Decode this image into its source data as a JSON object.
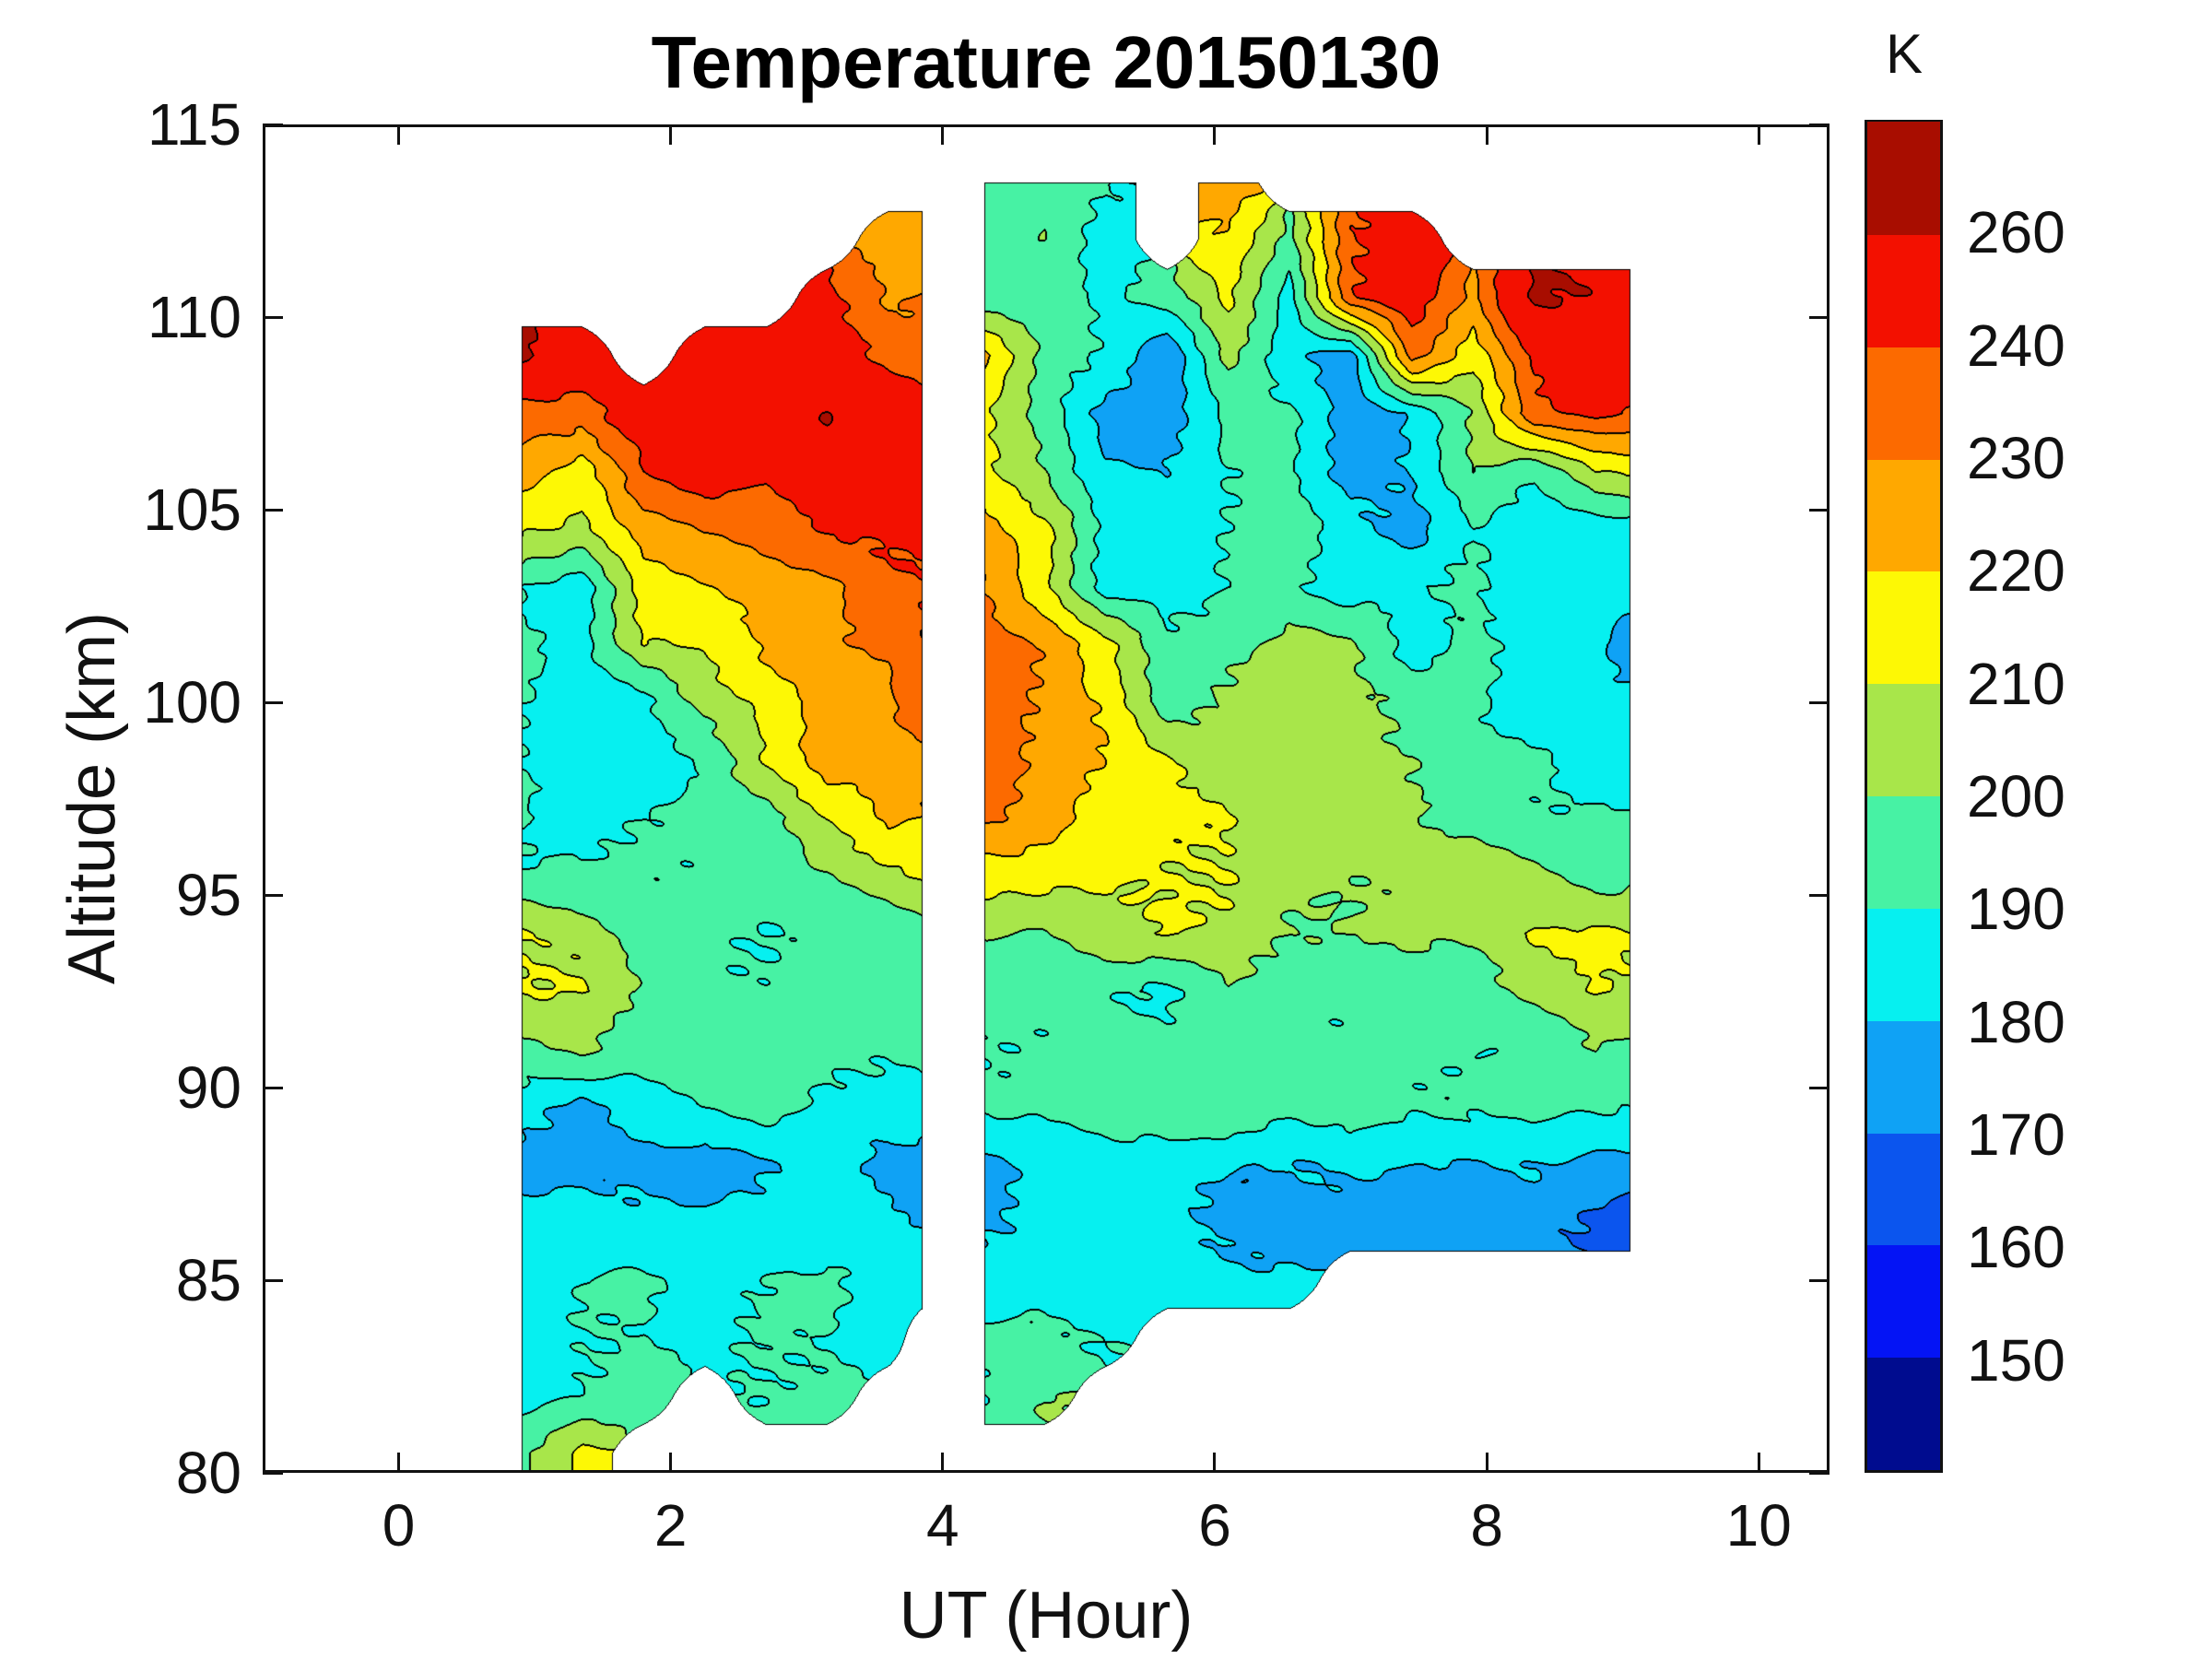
{
  "title": "Temperature 20150130",
  "axes": {
    "xlabel": "UT (Hour)",
    "ylabel": "Altitude (km)",
    "x_ticks": [
      0,
      2,
      4,
      6,
      8,
      10
    ],
    "y_ticks": [
      80,
      85,
      90,
      95,
      100,
      105,
      110,
      115
    ],
    "xlim": [
      -1.0,
      10.52
    ],
    "ylim": [
      80,
      115
    ]
  },
  "colorbar": {
    "label": "K",
    "tick_values_top_to_bottom": [
      260,
      240,
      230,
      220,
      210,
      200,
      190,
      180,
      170,
      160,
      150
    ]
  },
  "chart_data": {
    "type": "heatmap",
    "subtype": "filled_contour",
    "title": "Temperature 20150130",
    "xlabel": "UT (Hour)",
    "ylabel": "Altitude (km)",
    "unit": "K",
    "grid": false,
    "levels": [
      150,
      160,
      170,
      180,
      190,
      200,
      210,
      220,
      230,
      240,
      260
    ],
    "band_colors": [
      "#000c8f",
      "#0414f5",
      "#0b55ee",
      "#0fa2f5",
      "#06f0f0",
      "#47f2a4",
      "#a8e64a",
      "#fdf805",
      "#ffa800",
      "#fc6a00",
      "#f31000",
      "#a80d00"
    ],
    "line_color": "#000000",
    "blocks": [
      {
        "x": [
          0.9,
          1.35,
          1.8,
          2.25,
          2.7,
          3.15,
          3.6,
          3.85
        ],
        "y": [
          80.5,
          82,
          83.5,
          85,
          86.5,
          88,
          89.5,
          91,
          92.5,
          94,
          95.5,
          97,
          98.5,
          100,
          101.5,
          103,
          104.5,
          106,
          107.5,
          109,
          110.5,
          112,
          113.5
        ],
        "values": [
          [
            196,
            213,
            null,
            null,
            null,
            null,
            null,
            null
          ],
          [
            187,
            190,
            195,
            null,
            191,
            193,
            null,
            null
          ],
          [
            184,
            190,
            191,
            186,
            191,
            190,
            185,
            null
          ],
          [
            183,
            190,
            191,
            187,
            191,
            192,
            185,
            184
          ],
          [
            184,
            185,
            184,
            183,
            183,
            184,
            183,
            180
          ],
          [
            176,
            176,
            175,
            174,
            180,
            184,
            176,
            174
          ],
          [
            184,
            176,
            188,
            191,
            193,
            187,
            185,
            188
          ],
          [
            198,
            203,
            191,
            196,
            197,
            192,
            191,
            192
          ],
          [
            210,
            210,
            200,
            192,
            191,
            192,
            198,
            193
          ],
          [
            211,
            207,
            193,
            192,
            190,
            193,
            192,
            193
          ],
          [
            190,
            191,
            192,
            192,
            193,
            198,
            207,
            212
          ],
          [
            191,
            185,
            190,
            191,
            196,
            211,
            222,
            218
          ],
          [
            190,
            183,
            184,
            192,
            211,
            225,
            224,
            228
          ],
          [
            191,
            184,
            187,
            203,
            213,
            226,
            228,
            238
          ],
          [
            192,
            186,
            210,
            212,
            222,
            227,
            232,
            240
          ],
          [
            190,
            185,
            215,
            218,
            225,
            228,
            238,
            238
          ],
          [
            212,
            207,
            225,
            232,
            233,
            240,
            243,
            245
          ],
          [
            225,
            215,
            240,
            245,
            242,
            255,
            258,
            250
          ],
          [
            235,
            235,
            248,
            255,
            252,
            260,
            247,
            245
          ],
          [
            262,
            250,
            null,
            245,
            245,
            248,
            238,
            235
          ],
          [
            null,
            null,
            null,
            null,
            null,
            242,
            228,
            230
          ],
          [
            null,
            null,
            null,
            null,
            null,
            null,
            228,
            225
          ],
          [
            null,
            null,
            null,
            null,
            null,
            null,
            null,
            null
          ]
        ]
      },
      {
        "x": [
          4.3,
          4.75,
          5.2,
          5.65,
          6.1,
          6.55,
          7.0,
          7.45,
          7.9,
          8.35,
          8.8,
          9.05
        ],
        "y": [
          80.5,
          82,
          83.5,
          85,
          86.5,
          88,
          89.5,
          91,
          92.5,
          94,
          95.5,
          97,
          98.5,
          100,
          101.5,
          103,
          104.5,
          106,
          107.5,
          109,
          110.5,
          112,
          113.5
        ],
        "values": [
          [
            null,
            null,
            null,
            null,
            null,
            null,
            null,
            null,
            null,
            null,
            null,
            null
          ],
          [
            191,
            200,
            null,
            null,
            null,
            null,
            null,
            null,
            null,
            null,
            null,
            null
          ],
          [
            191,
            192,
            190,
            null,
            null,
            null,
            null,
            null,
            null,
            null,
            null,
            null
          ],
          [
            185,
            185,
            180,
            184,
            183,
            182,
            null,
            null,
            null,
            null,
            null,
            null
          ],
          [
            177,
            183,
            184,
            183,
            176,
            175,
            175,
            174,
            174,
            174,
            169,
            167
          ],
          [
            177,
            184,
            183,
            183,
            182,
            180,
            181,
            180,
            180,
            181,
            176,
            175
          ],
          [
            191,
            192,
            198,
            198,
            198,
            192,
            197,
            192,
            191,
            193,
            192,
            191
          ],
          [
            191,
            192,
            191,
            192,
            193,
            192,
            191,
            192,
            191,
            192,
            199,
            197
          ],
          [
            192,
            191,
            192,
            188,
            199,
            193,
            192,
            198,
            193,
            203,
            211,
            210
          ],
          [
            201,
            200,
            207,
            210,
            208,
            200,
            200,
            201,
            202,
            212,
            211,
            210
          ],
          [
            215,
            213,
            212,
            211,
            210,
            202,
            201,
            203,
            210,
            202,
            196,
            198
          ],
          [
            233,
            226,
            214,
            212,
            211,
            202,
            207,
            200,
            196,
            192,
            191,
            190
          ],
          [
            234,
            227,
            220,
            212,
            203,
            204,
            202,
            201,
            193,
            191,
            186,
            185
          ],
          [
            236,
            229,
            218,
            193,
            202,
            204,
            203,
            196,
            192,
            185,
            184,
            183
          ],
          [
            237,
            228,
            213,
            194,
            196,
            203,
            202,
            186,
            193,
            184,
            183,
            175
          ],
          [
            230,
            213,
            185,
            183,
            190,
            193,
            184,
            188,
            192,
            183,
            182,
            183
          ],
          [
            225,
            213,
            186,
            184,
            191,
            197,
            183,
            176,
            190,
            184,
            183,
            184
          ],
          [
            212,
            200,
            182,
            180,
            190,
            192,
            175,
            180,
            200,
            192,
            210,
            212
          ],
          [
            213,
            195,
            175,
            175,
            193,
            192,
            173,
            182,
            202,
            237,
            242,
            240
          ],
          [
            222,
            197,
            190,
            170,
            203,
            183,
            175,
            235,
            212,
            243,
            246,
            245
          ],
          [
            195,
            195,
            187,
            195,
            213,
            185,
            238,
            248,
            228,
            262,
            258,
            255
          ],
          [
            197,
            200,
            185,
            null,
            218,
            197,
            240,
            245,
            null,
            null,
            null,
            null
          ],
          [
            196,
            197,
            190,
            null,
            225,
            null,
            null,
            null,
            null,
            null,
            null,
            null
          ]
        ]
      }
    ]
  }
}
